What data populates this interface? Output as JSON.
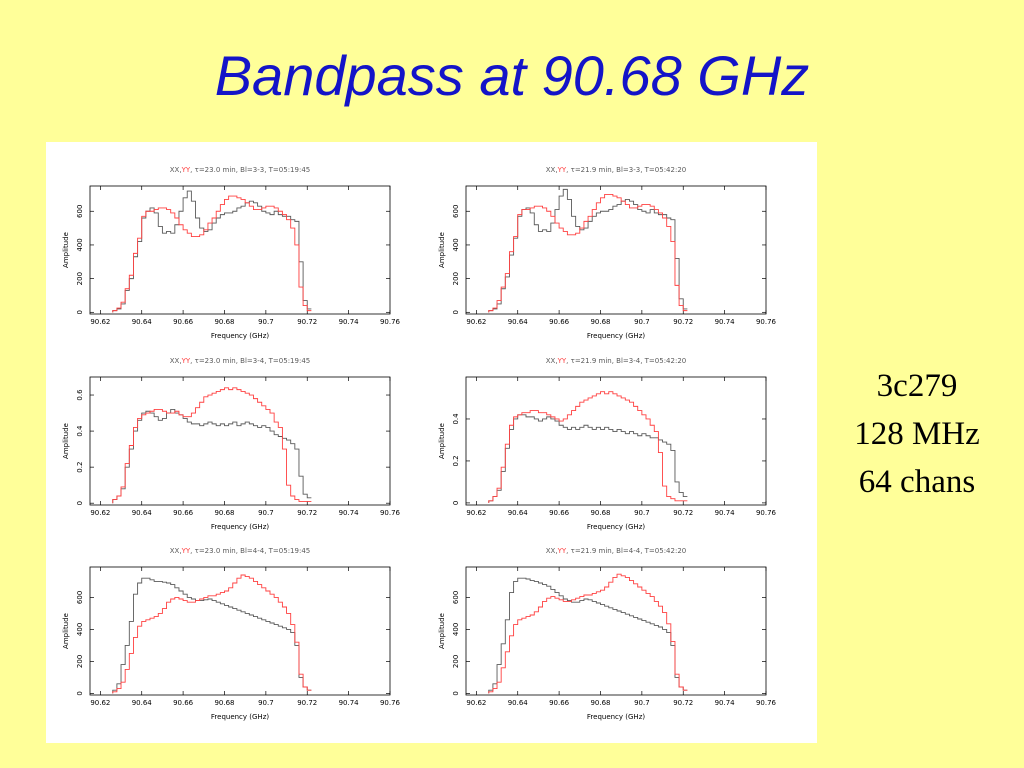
{
  "slide": {
    "title": "Bandpass at 90.68 GHz",
    "notes": [
      "3c279",
      "128 MHz",
      "64 chans"
    ]
  },
  "colors": {
    "background": "#ffff99",
    "title": "#1414c8",
    "xx": "#5a5a5a",
    "yy": "#ff4040"
  },
  "chart_data": [
    {
      "type": "line",
      "step": true,
      "title_parts": [
        "XX,",
        "YY",
        ", τ=23.0  min,  Bl=3-3,  T=05:19:45"
      ],
      "xlabel": "Frequency (GHz)",
      "ylabel": "Amplitude",
      "xlim": [
        90.615,
        90.76
      ],
      "ylim": [
        -10,
        750
      ],
      "xticks": [
        90.62,
        90.64,
        90.66,
        90.68,
        90.7,
        90.72,
        90.74,
        90.76
      ],
      "yticks": [
        0,
        200,
        400,
        600
      ],
      "x_start": 90.626,
      "x_step": 0.002,
      "series": [
        {
          "name": "XX",
          "values": [
            10,
            20,
            50,
            130,
            200,
            330,
            420,
            560,
            600,
            620,
            590,
            510,
            470,
            480,
            470,
            520,
            600,
            680,
            720,
            660,
            560,
            500,
            480,
            490,
            530,
            560,
            580,
            590,
            590,
            600,
            620,
            630,
            650,
            660,
            650,
            630,
            600,
            590,
            580,
            600,
            580,
            570,
            570,
            550,
            540,
            300,
            70,
            20
          ]
        },
        {
          "name": "YY",
          "values": [
            10,
            25,
            60,
            140,
            220,
            350,
            440,
            570,
            600,
            600,
            610,
            620,
            620,
            610,
            590,
            560,
            520,
            490,
            470,
            450,
            450,
            460,
            490,
            530,
            560,
            600,
            640,
            670,
            690,
            690,
            680,
            670,
            650,
            630,
            610,
            610,
            620,
            630,
            630,
            620,
            600,
            580,
            550,
            500,
            400,
            150,
            40,
            10
          ]
        }
      ]
    },
    {
      "type": "line",
      "step": true,
      "title_parts": [
        "XX,",
        "YY",
        ", τ=21.9  min,  Bl=3-3,  T=05:42:20"
      ],
      "xlabel": "Frequency (GHz)",
      "ylabel": "Amplitude",
      "xlim": [
        90.615,
        90.76
      ],
      "ylim": [
        -10,
        750
      ],
      "xticks": [
        90.62,
        90.64,
        90.66,
        90.68,
        90.7,
        90.72,
        90.74,
        90.76
      ],
      "yticks": [
        0,
        200,
        400,
        600
      ],
      "x_start": 90.626,
      "x_step": 0.002,
      "series": [
        {
          "name": "XX",
          "values": [
            10,
            20,
            50,
            140,
            210,
            340,
            440,
            570,
            610,
            620,
            590,
            520,
            480,
            490,
            480,
            530,
            610,
            690,
            730,
            670,
            570,
            510,
            490,
            500,
            540,
            570,
            590,
            600,
            600,
            610,
            630,
            640,
            660,
            670,
            660,
            640,
            610,
            600,
            590,
            610,
            590,
            580,
            580,
            560,
            550,
            320,
            80,
            20
          ]
        },
        {
          "name": "YY",
          "values": [
            10,
            25,
            70,
            150,
            230,
            360,
            450,
            580,
            610,
            610,
            620,
            630,
            630,
            620,
            600,
            570,
            530,
            500,
            480,
            460,
            460,
            470,
            500,
            540,
            570,
            610,
            650,
            680,
            700,
            700,
            690,
            680,
            660,
            640,
            620,
            620,
            630,
            640,
            640,
            630,
            610,
            590,
            560,
            510,
            420,
            160,
            40,
            10
          ]
        }
      ]
    },
    {
      "type": "line",
      "step": true,
      "title_parts": [
        "XX,",
        "YY",
        ", τ=23.0  min,  Bl=3-4,  T=05:19:45"
      ],
      "xlabel": "Frequency (GHz)",
      "ylabel": "Amplitude",
      "xlim": [
        90.615,
        90.76
      ],
      "ylim": [
        -0.01,
        0.7
      ],
      "xticks": [
        90.62,
        90.64,
        90.66,
        90.68,
        90.7,
        90.72,
        90.74,
        90.76
      ],
      "yticks": [
        0,
        0.2,
        0.4,
        0.6
      ],
      "x_start": 90.626,
      "x_step": 0.002,
      "series": [
        {
          "name": "XX",
          "values": [
            0.02,
            0.04,
            0.08,
            0.2,
            0.3,
            0.4,
            0.46,
            0.5,
            0.51,
            0.5,
            0.48,
            0.46,
            0.47,
            0.5,
            0.52,
            0.5,
            0.49,
            0.47,
            0.45,
            0.44,
            0.44,
            0.43,
            0.44,
            0.45,
            0.44,
            0.43,
            0.44,
            0.43,
            0.44,
            0.45,
            0.43,
            0.44,
            0.45,
            0.44,
            0.43,
            0.42,
            0.43,
            0.42,
            0.4,
            0.38,
            0.37,
            0.36,
            0.35,
            0.33,
            0.3,
            0.15,
            0.05,
            0.03
          ]
        },
        {
          "name": "YY",
          "values": [
            0.02,
            0.04,
            0.09,
            0.22,
            0.32,
            0.42,
            0.47,
            0.49,
            0.5,
            0.51,
            0.52,
            0.52,
            0.51,
            0.5,
            0.5,
            0.51,
            0.49,
            0.48,
            0.48,
            0.5,
            0.53,
            0.56,
            0.59,
            0.6,
            0.61,
            0.62,
            0.63,
            0.64,
            0.63,
            0.64,
            0.63,
            0.62,
            0.61,
            0.6,
            0.58,
            0.56,
            0.54,
            0.52,
            0.5,
            0.45,
            0.42,
            0.3,
            0.1,
            0.04,
            0.02,
            0.01,
            0.01,
            0.01
          ]
        }
      ]
    },
    {
      "type": "line",
      "step": true,
      "title_parts": [
        "XX,",
        "YY",
        ", τ=21.9  min,  Bl=3-4,  T=05:42:20"
      ],
      "xlabel": "Frequency (GHz)",
      "ylabel": "Amplitude",
      "xlim": [
        90.615,
        90.76
      ],
      "ylim": [
        -0.01,
        0.6
      ],
      "xticks": [
        90.62,
        90.64,
        90.66,
        90.68,
        90.7,
        90.72,
        90.74,
        90.76
      ],
      "yticks": [
        0,
        0.2,
        0.4
      ],
      "x_start": 90.626,
      "x_step": 0.002,
      "series": [
        {
          "name": "XX",
          "values": [
            0.01,
            0.03,
            0.06,
            0.15,
            0.26,
            0.35,
            0.4,
            0.42,
            0.42,
            0.41,
            0.41,
            0.4,
            0.39,
            0.4,
            0.41,
            0.4,
            0.39,
            0.37,
            0.36,
            0.35,
            0.36,
            0.35,
            0.36,
            0.37,
            0.36,
            0.35,
            0.36,
            0.35,
            0.36,
            0.35,
            0.34,
            0.35,
            0.34,
            0.33,
            0.34,
            0.33,
            0.32,
            0.33,
            0.32,
            0.31,
            0.31,
            0.3,
            0.29,
            0.28,
            0.25,
            0.1,
            0.05,
            0.03
          ]
        },
        {
          "name": "YY",
          "values": [
            0.01,
            0.03,
            0.07,
            0.17,
            0.28,
            0.37,
            0.41,
            0.42,
            0.43,
            0.43,
            0.44,
            0.44,
            0.43,
            0.43,
            0.42,
            0.41,
            0.4,
            0.39,
            0.4,
            0.42,
            0.44,
            0.46,
            0.48,
            0.49,
            0.5,
            0.51,
            0.52,
            0.53,
            0.52,
            0.53,
            0.52,
            0.51,
            0.5,
            0.49,
            0.48,
            0.46,
            0.44,
            0.42,
            0.4,
            0.37,
            0.34,
            0.24,
            0.08,
            0.03,
            0.02,
            0.01,
            0.01,
            0.01
          ]
        }
      ]
    },
    {
      "type": "line",
      "step": true,
      "title_parts": [
        "XX,",
        "YY",
        ", τ=23.0  min,  Bl=4-4,  T=05:19:45"
      ],
      "xlabel": "Frequency (GHz)",
      "ylabel": "Amplitude",
      "xlim": [
        90.615,
        90.76
      ],
      "ylim": [
        -10,
        790
      ],
      "xticks": [
        90.62,
        90.64,
        90.66,
        90.68,
        90.7,
        90.72,
        90.74,
        90.76
      ],
      "yticks": [
        0,
        200,
        400,
        600
      ],
      "x_start": 90.626,
      "x_step": 0.002,
      "series": [
        {
          "name": "XX",
          "values": [
            20,
            60,
            180,
            300,
            450,
            620,
            690,
            720,
            720,
            710,
            700,
            700,
            695,
            690,
            680,
            660,
            640,
            620,
            600,
            590,
            580,
            580,
            585,
            590,
            580,
            570,
            560,
            550,
            540,
            530,
            520,
            510,
            500,
            490,
            480,
            470,
            460,
            450,
            440,
            430,
            420,
            410,
            400,
            380,
            300,
            100,
            40,
            20
          ]
        },
        {
          "name": "YY",
          "values": [
            10,
            30,
            70,
            150,
            250,
            350,
            420,
            450,
            460,
            470,
            480,
            500,
            530,
            570,
            590,
            600,
            590,
            580,
            570,
            570,
            580,
            590,
            600,
            610,
            610,
            620,
            630,
            640,
            660,
            690,
            720,
            740,
            730,
            720,
            700,
            680,
            660,
            640,
            620,
            600,
            570,
            540,
            500,
            430,
            320,
            120,
            40,
            20
          ]
        }
      ]
    },
    {
      "type": "line",
      "step": true,
      "title_parts": [
        "XX,",
        "YY",
        ", τ=21.9  min,  Bl=4-4,  T=05:42:20"
      ],
      "xlabel": "Frequency (GHz)",
      "ylabel": "Amplitude",
      "xlim": [
        90.615,
        90.76
      ],
      "ylim": [
        -10,
        790
      ],
      "xticks": [
        90.62,
        90.64,
        90.66,
        90.68,
        90.7,
        90.72,
        90.74,
        90.76
      ],
      "yticks": [
        0,
        200,
        400,
        600
      ],
      "x_start": 90.626,
      "x_step": 0.002,
      "series": [
        {
          "name": "XX",
          "values": [
            20,
            60,
            180,
            310,
            460,
            630,
            700,
            720,
            720,
            715,
            705,
            700,
            690,
            680,
            670,
            650,
            630,
            610,
            590,
            580,
            570,
            570,
            580,
            590,
            585,
            575,
            565,
            555,
            545,
            535,
            525,
            515,
            505,
            495,
            485,
            475,
            465,
            455,
            445,
            435,
            425,
            415,
            400,
            380,
            300,
            100,
            40,
            20
          ]
        },
        {
          "name": "YY",
          "values": [
            10,
            30,
            70,
            160,
            260,
            360,
            430,
            460,
            470,
            480,
            490,
            510,
            540,
            575,
            595,
            605,
            595,
            585,
            575,
            575,
            585,
            595,
            605,
            615,
            615,
            625,
            635,
            645,
            665,
            695,
            725,
            745,
            735,
            725,
            705,
            685,
            665,
            645,
            625,
            605,
            575,
            545,
            505,
            435,
            325,
            120,
            40,
            20
          ]
        }
      ]
    }
  ]
}
